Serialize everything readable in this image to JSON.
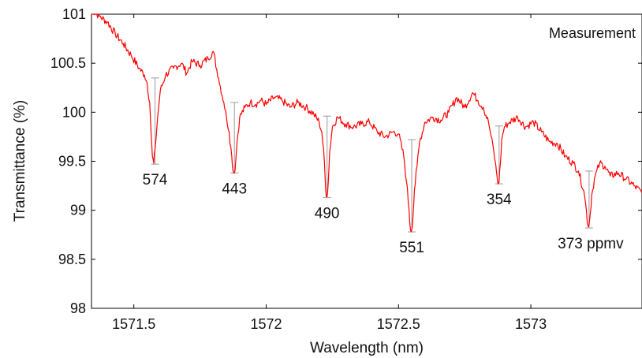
{
  "chart_data": {
    "type": "line",
    "title": "",
    "xlabel": "Wavelength (nm)",
    "ylabel": "Transmittance (%)",
    "xlim": [
      1571.34,
      1573.42
    ],
    "ylim": [
      98,
      101
    ],
    "xticks": [
      1571.5,
      1572,
      1572.5,
      1573
    ],
    "xtick_labels": [
      "1571.5",
      "1572",
      "1572.5",
      "1573"
    ],
    "yticks": [
      98,
      98.5,
      99,
      99.5,
      100,
      100.5,
      101
    ],
    "ytick_labels": [
      "98",
      "98.5",
      "99",
      "99.5",
      "100",
      "100.5",
      "101"
    ],
    "grid": false,
    "legend": {
      "entries": [
        "Measurement"
      ],
      "placement": "top-right"
    },
    "series": [
      {
        "name": "Measurement",
        "color": "#ff0000",
        "x": [
          1571.34,
          1571.37,
          1571.4,
          1571.43,
          1571.46,
          1571.49,
          1571.52,
          1571.54,
          1571.55,
          1571.56,
          1571.565,
          1571.57,
          1571.575,
          1571.58,
          1571.59,
          1571.6,
          1571.62,
          1571.65,
          1571.68,
          1571.7,
          1571.72,
          1571.75,
          1571.78,
          1571.8,
          1571.82,
          1571.84,
          1571.85,
          1571.86,
          1571.87,
          1571.875,
          1571.88,
          1571.885,
          1571.89,
          1571.9,
          1571.92,
          1571.94,
          1571.96,
          1571.98,
          1572.0,
          1572.03,
          1572.06,
          1572.09,
          1572.12,
          1572.15,
          1572.18,
          1572.2,
          1572.21,
          1572.22,
          1572.225,
          1572.23,
          1572.235,
          1572.24,
          1572.25,
          1572.27,
          1572.3,
          1572.33,
          1572.36,
          1572.39,
          1572.42,
          1572.45,
          1572.48,
          1572.5,
          1572.52,
          1572.53,
          1572.54,
          1572.545,
          1572.55,
          1572.555,
          1572.56,
          1572.57,
          1572.58,
          1572.6,
          1572.63,
          1572.66,
          1572.69,
          1572.72,
          1572.75,
          1572.78,
          1572.8,
          1572.82,
          1572.84,
          1572.85,
          1572.86,
          1572.87,
          1572.875,
          1572.88,
          1572.885,
          1572.89,
          1572.9,
          1572.92,
          1572.95,
          1572.98,
          1573.01,
          1573.04,
          1573.07,
          1573.1,
          1573.13,
          1573.16,
          1573.18,
          1573.2,
          1573.21,
          1573.215,
          1573.22,
          1573.225,
          1573.23,
          1573.24,
          1573.26,
          1573.28,
          1573.3,
          1573.33,
          1573.36,
          1573.39,
          1573.42
        ],
        "y": [
          101.05,
          100.98,
          100.92,
          100.8,
          100.7,
          100.58,
          100.45,
          100.38,
          100.3,
          100.1,
          99.8,
          99.55,
          99.48,
          99.62,
          99.95,
          100.22,
          100.38,
          100.45,
          100.5,
          100.4,
          100.52,
          100.48,
          100.55,
          100.62,
          100.35,
          100.1,
          99.95,
          99.8,
          99.55,
          99.4,
          99.38,
          99.5,
          99.7,
          99.95,
          100.05,
          100.1,
          100.08,
          100.12,
          100.08,
          100.15,
          100.12,
          100.05,
          100.1,
          100.05,
          99.98,
          99.9,
          99.8,
          99.5,
          99.2,
          99.14,
          99.3,
          99.6,
          99.85,
          99.95,
          99.88,
          99.85,
          99.88,
          99.9,
          99.8,
          99.75,
          99.8,
          99.78,
          99.55,
          99.3,
          99.0,
          98.8,
          98.8,
          98.95,
          99.2,
          99.45,
          99.7,
          99.9,
          99.95,
          99.92,
          100.0,
          100.15,
          100.05,
          100.2,
          100.12,
          100.05,
          99.9,
          99.75,
          99.6,
          99.4,
          99.28,
          99.3,
          99.48,
          99.72,
          99.85,
          99.9,
          99.95,
          99.85,
          99.9,
          99.8,
          99.7,
          99.68,
          99.55,
          99.48,
          99.4,
          99.2,
          99.0,
          98.85,
          98.85,
          98.98,
          99.15,
          99.32,
          99.48,
          99.45,
          99.35,
          99.38,
          99.32,
          99.25,
          99.18
        ]
      }
    ],
    "annotations": [
      {
        "x": 1571.58,
        "top": 100.35,
        "bottom": 99.47,
        "label": "574"
      },
      {
        "x": 1571.88,
        "top": 100.1,
        "bottom": 99.38,
        "label": "443"
      },
      {
        "x": 1572.23,
        "top": 99.96,
        "bottom": 99.13,
        "label": "490"
      },
      {
        "x": 1572.55,
        "top": 99.72,
        "bottom": 98.78,
        "label": "551"
      },
      {
        "x": 1572.88,
        "top": 99.86,
        "bottom": 99.27,
        "label": "354"
      },
      {
        "x": 1573.22,
        "top": 99.4,
        "bottom": 98.82,
        "label": "373 ppmv"
      }
    ],
    "colors": {
      "line": "#ff0000",
      "depth_markers": "#aaaaaa",
      "axes": "#000000"
    }
  }
}
